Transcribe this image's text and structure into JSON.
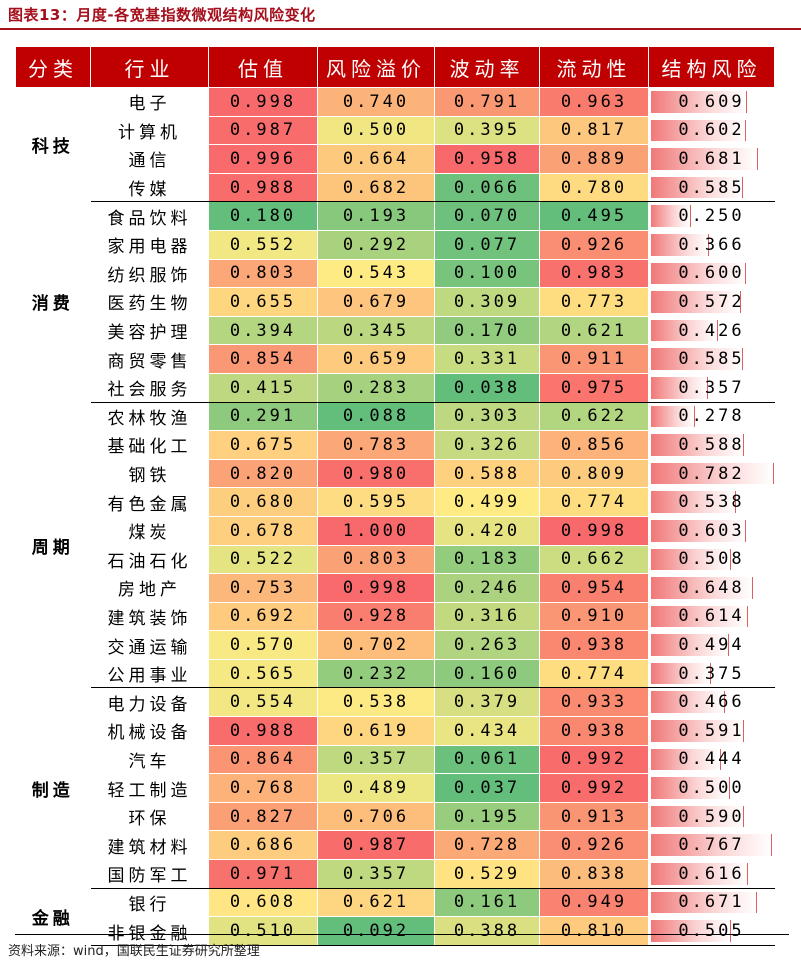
{
  "title": "图表13：月度-各宽基指数微观结构风险变化",
  "headers": [
    "分类",
    "行业",
    "估值",
    "风险溢价",
    "波动率",
    "流动性",
    "结构风险"
  ],
  "groups": [
    {
      "name": "科技",
      "rows": [
        {
          "industry": "电子",
          "valuation": "0.998",
          "premium": "0.740",
          "volatility": "0.791",
          "liquidity": "0.963",
          "risk": "0.609"
        },
        {
          "industry": "计算机",
          "valuation": "0.987",
          "premium": "0.500",
          "volatility": "0.395",
          "liquidity": "0.817",
          "risk": "0.602"
        },
        {
          "industry": "通信",
          "valuation": "0.996",
          "premium": "0.664",
          "volatility": "0.958",
          "liquidity": "0.889",
          "risk": "0.681"
        },
        {
          "industry": "传媒",
          "valuation": "0.988",
          "premium": "0.682",
          "volatility": "0.066",
          "liquidity": "0.780",
          "risk": "0.585"
        }
      ]
    },
    {
      "name": "消费",
      "rows": [
        {
          "industry": "食品饮料",
          "valuation": "0.180",
          "premium": "0.193",
          "volatility": "0.070",
          "liquidity": "0.495",
          "risk": "0.250"
        },
        {
          "industry": "家用电器",
          "valuation": "0.552",
          "premium": "0.292",
          "volatility": "0.077",
          "liquidity": "0.926",
          "risk": "0.366"
        },
        {
          "industry": "纺织服饰",
          "valuation": "0.803",
          "premium": "0.543",
          "volatility": "0.100",
          "liquidity": "0.983",
          "risk": "0.600"
        },
        {
          "industry": "医药生物",
          "valuation": "0.655",
          "premium": "0.679",
          "volatility": "0.309",
          "liquidity": "0.773",
          "risk": "0.572"
        },
        {
          "industry": "美容护理",
          "valuation": "0.394",
          "premium": "0.345",
          "volatility": "0.170",
          "liquidity": "0.621",
          "risk": "0.426"
        },
        {
          "industry": "商贸零售",
          "valuation": "0.854",
          "premium": "0.659",
          "volatility": "0.331",
          "liquidity": "0.911",
          "risk": "0.585"
        },
        {
          "industry": "社会服务",
          "valuation": "0.415",
          "premium": "0.283",
          "volatility": "0.038",
          "liquidity": "0.975",
          "risk": "0.357"
        }
      ]
    },
    {
      "name": "周期",
      "rows": [
        {
          "industry": "农林牧渔",
          "valuation": "0.291",
          "premium": "0.088",
          "volatility": "0.303",
          "liquidity": "0.622",
          "risk": "0.278"
        },
        {
          "industry": "基础化工",
          "valuation": "0.675",
          "premium": "0.783",
          "volatility": "0.326",
          "liquidity": "0.856",
          "risk": "0.588"
        },
        {
          "industry": "钢铁",
          "valuation": "0.820",
          "premium": "0.980",
          "volatility": "0.588",
          "liquidity": "0.809",
          "risk": "0.782"
        },
        {
          "industry": "有色金属",
          "valuation": "0.680",
          "premium": "0.595",
          "volatility": "0.499",
          "liquidity": "0.774",
          "risk": "0.538"
        },
        {
          "industry": "煤炭",
          "valuation": "0.678",
          "premium": "1.000",
          "volatility": "0.420",
          "liquidity": "0.998",
          "risk": "0.603"
        },
        {
          "industry": "石油石化",
          "valuation": "0.522",
          "premium": "0.803",
          "volatility": "0.183",
          "liquidity": "0.662",
          "risk": "0.508"
        },
        {
          "industry": "房地产",
          "valuation": "0.753",
          "premium": "0.998",
          "volatility": "0.246",
          "liquidity": "0.954",
          "risk": "0.648"
        },
        {
          "industry": "建筑装饰",
          "valuation": "0.692",
          "premium": "0.928",
          "volatility": "0.316",
          "liquidity": "0.910",
          "risk": "0.614"
        },
        {
          "industry": "交通运输",
          "valuation": "0.570",
          "premium": "0.702",
          "volatility": "0.263",
          "liquidity": "0.938",
          "risk": "0.494"
        },
        {
          "industry": "公用事业",
          "valuation": "0.565",
          "premium": "0.232",
          "volatility": "0.160",
          "liquidity": "0.774",
          "risk": "0.375"
        }
      ]
    },
    {
      "name": "制造",
      "rows": [
        {
          "industry": "电力设备",
          "valuation": "0.554",
          "premium": "0.538",
          "volatility": "0.379",
          "liquidity": "0.933",
          "risk": "0.466"
        },
        {
          "industry": "机械设备",
          "valuation": "0.988",
          "premium": "0.619",
          "volatility": "0.434",
          "liquidity": "0.938",
          "risk": "0.591"
        },
        {
          "industry": "汽车",
          "valuation": "0.864",
          "premium": "0.357",
          "volatility": "0.061",
          "liquidity": "0.992",
          "risk": "0.444"
        },
        {
          "industry": "轻工制造",
          "valuation": "0.768",
          "premium": "0.489",
          "volatility": "0.037",
          "liquidity": "0.992",
          "risk": "0.500"
        },
        {
          "industry": "环保",
          "valuation": "0.827",
          "premium": "0.706",
          "volatility": "0.195",
          "liquidity": "0.913",
          "risk": "0.590"
        },
        {
          "industry": "建筑材料",
          "valuation": "0.686",
          "premium": "0.987",
          "volatility": "0.728",
          "liquidity": "0.926",
          "risk": "0.767"
        },
        {
          "industry": "国防军工",
          "valuation": "0.971",
          "premium": "0.357",
          "volatility": "0.529",
          "liquidity": "0.838",
          "risk": "0.616"
        }
      ]
    },
    {
      "name": "金融",
      "rows": [
        {
          "industry": "银行",
          "valuation": "0.608",
          "premium": "0.621",
          "volatility": "0.161",
          "liquidity": "0.949",
          "risk": "0.671"
        },
        {
          "industry": "非银金融",
          "valuation": "0.510",
          "premium": "0.092",
          "volatility": "0.388",
          "liquidity": "0.810",
          "risk": "0.505"
        }
      ]
    }
  ],
  "colors": {
    "header_bg": "#c00000",
    "title": "#a50f1c",
    "scale_low": "#63be7b",
    "scale_mid": "#ffeb84",
    "scale_high": "#f8696b"
  },
  "source": "资料来源：wind，国联民生证券研究所整理"
}
